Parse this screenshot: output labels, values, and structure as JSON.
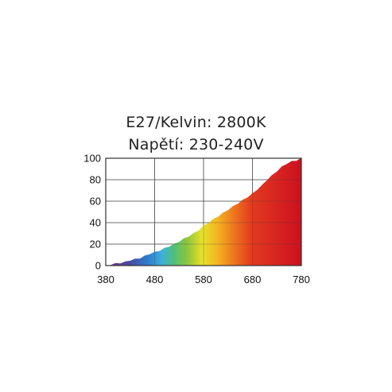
{
  "header": {
    "line1": "E27/Kelvin: 2800K",
    "line2": "Napětí: 230-240V"
  },
  "chart_data": {
    "type": "area",
    "title": "",
    "xlabel": "",
    "ylabel": "",
    "xlim": [
      380,
      780
    ],
    "ylim": [
      0,
      100
    ],
    "x_ticks": [
      380,
      480,
      580,
      680,
      780
    ],
    "y_ticks": [
      0,
      20,
      40,
      60,
      80,
      100
    ],
    "grid": true,
    "fill": "visible-spectrum gradient (violet to red)",
    "series": [
      {
        "x": [
          390,
          400,
          410,
          420,
          430,
          440,
          450,
          460,
          470,
          480,
          490,
          500,
          510,
          520,
          530,
          540,
          550,
          560,
          570,
          580,
          590,
          600,
          610,
          620,
          630,
          640,
          650,
          660,
          670,
          680,
          690,
          700,
          710,
          720,
          730,
          740,
          750,
          760,
          770,
          780
        ],
        "values": [
          1,
          2,
          2.5,
          3.5,
          5,
          6,
          7,
          9,
          11,
          12.5,
          14,
          16,
          18,
          20,
          22.5,
          25,
          27.5,
          30,
          33,
          37,
          40,
          43,
          46,
          49,
          52,
          55,
          58,
          61,
          64,
          67,
          71,
          75,
          80,
          84,
          88,
          92,
          95,
          97,
          98,
          100
        ]
      }
    ]
  }
}
